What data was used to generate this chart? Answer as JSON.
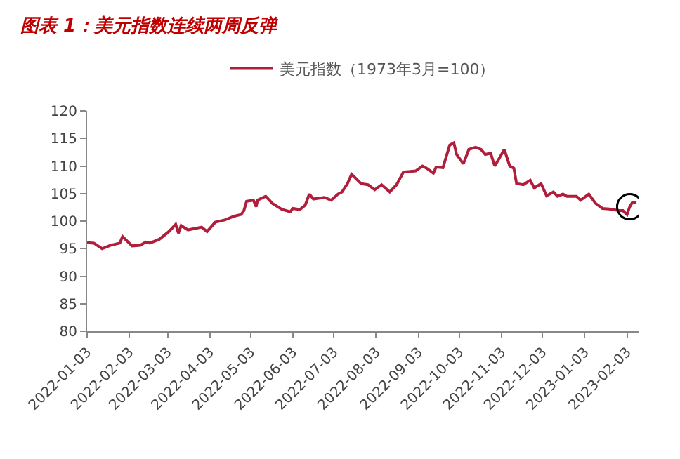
{
  "chart_data": {
    "type": "line",
    "title": "图表 1：美元指数连续两周反弹",
    "x": [
      "2022-01-03",
      "2022-01-08",
      "2022-01-11",
      "2022-01-14",
      "2022-01-20",
      "2022-01-27",
      "2022-01-29",
      "2022-02-05",
      "2022-02-11",
      "2022-02-15",
      "2022-02-18",
      "2022-02-25",
      "2022-03-04",
      "2022-03-09",
      "2022-03-11",
      "2022-03-13",
      "2022-03-18",
      "2022-03-28",
      "2022-04-01",
      "2022-04-07",
      "2022-04-14",
      "2022-04-21",
      "2022-04-26",
      "2022-04-28",
      "2022-04-30",
      "2022-05-05",
      "2022-05-07",
      "2022-05-08",
      "2022-05-14",
      "2022-05-19",
      "2022-05-26",
      "2022-06-01",
      "2022-06-03",
      "2022-06-08",
      "2022-06-12",
      "2022-06-15",
      "2022-06-18",
      "2022-06-26",
      "2022-07-01",
      "2022-07-06",
      "2022-07-09",
      "2022-07-13",
      "2022-07-16",
      "2022-07-23",
      "2022-07-28",
      "2022-08-02",
      "2022-08-07",
      "2022-08-13",
      "2022-08-18",
      "2022-08-23",
      "2022-08-28",
      "2022-09-01",
      "2022-09-06",
      "2022-09-09",
      "2022-09-14",
      "2022-09-16",
      "2022-09-21",
      "2022-09-26",
      "2022-09-29",
      "2022-10-01",
      "2022-10-06",
      "2022-10-10",
      "2022-10-15",
      "2022-10-19",
      "2022-10-22",
      "2022-10-26",
      "2022-10-29",
      "2022-11-02",
      "2022-11-05",
      "2022-11-09",
      "2022-11-12",
      "2022-11-14",
      "2022-11-19",
      "2022-11-24",
      "2022-11-27",
      "2022-12-02",
      "2022-12-06",
      "2022-12-11",
      "2022-12-14",
      "2022-12-18",
      "2022-12-21",
      "2022-12-28",
      "2022-12-31",
      "2023-01-06",
      "2023-01-11",
      "2023-01-16",
      "2023-01-21",
      "2023-01-28",
      "2023-01-31",
      "2023-02-03",
      "2023-02-05",
      "2023-02-07",
      "2023-02-10"
    ],
    "series": [
      {
        "name": "美元指数（1973年3月=100）",
        "color": "#b01e3c",
        "values": [
          96.1,
          96.0,
          95.5,
          95.0,
          95.6,
          96.0,
          97.2,
          95.5,
          95.6,
          96.2,
          96.0,
          96.7,
          98.1,
          99.4,
          97.8,
          99.2,
          98.4,
          98.9,
          98.1,
          99.8,
          100.2,
          100.9,
          101.2,
          101.9,
          103.6,
          103.8,
          102.6,
          103.8,
          104.5,
          103.2,
          102.1,
          101.7,
          102.3,
          102.1,
          102.9,
          104.9,
          104.0,
          104.3,
          103.8,
          104.9,
          105.3,
          106.8,
          108.5,
          106.8,
          106.6,
          105.7,
          106.6,
          105.3,
          106.6,
          108.9,
          109.0,
          109.1,
          110.0,
          109.6,
          108.7,
          109.8,
          109.7,
          113.8,
          114.2,
          112.1,
          110.4,
          113.0,
          113.4,
          113.0,
          112.1,
          112.3,
          110.0,
          111.7,
          113.0,
          110.0,
          109.6,
          106.8,
          106.6,
          107.4,
          106.0,
          106.8,
          104.6,
          105.3,
          104.5,
          104.9,
          104.5,
          104.5,
          103.8,
          104.9,
          103.2,
          102.3,
          102.2,
          101.9,
          101.9,
          101.2,
          102.6,
          103.4,
          103.4
        ]
      }
    ],
    "xlim": [
      "2022-01-03",
      "2023-02-12"
    ],
    "xticks": [
      "2022-01-03",
      "2022-02-03",
      "2022-03-03",
      "2022-04-03",
      "2022-05-03",
      "2022-06-03",
      "2022-07-03",
      "2022-08-03",
      "2022-09-03",
      "2022-10-03",
      "2022-11-03",
      "2022-12-03",
      "2023-01-03",
      "2023-02-03"
    ],
    "ylim": [
      80,
      120
    ],
    "yticks": [
      80,
      85,
      90,
      95,
      100,
      105,
      110,
      115,
      120
    ],
    "legend": "top",
    "marker": "none",
    "line_style": "solid"
  }
}
